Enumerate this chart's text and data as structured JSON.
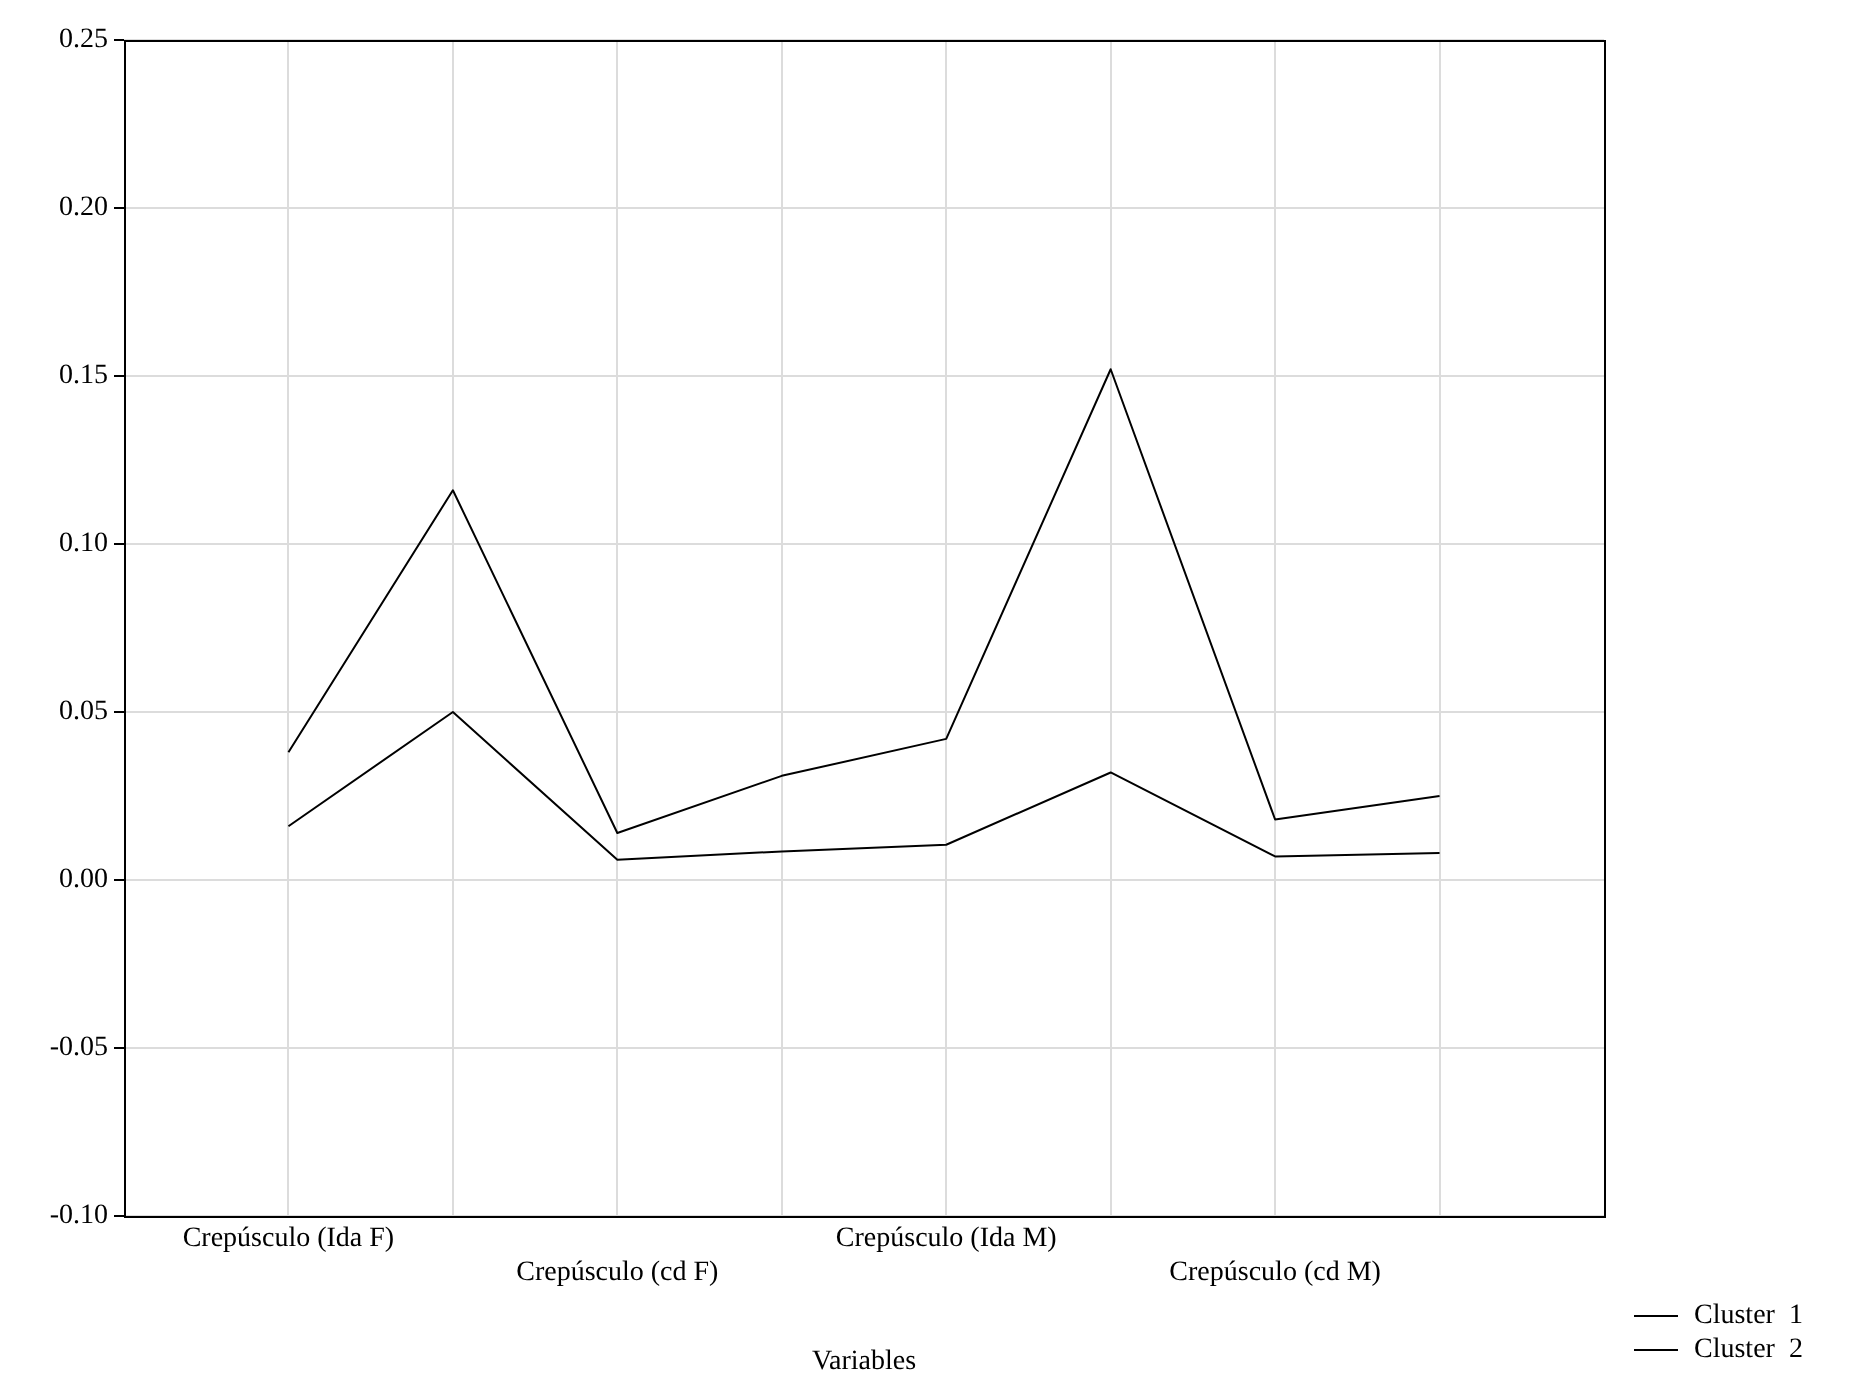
{
  "chart_data": {
    "type": "line",
    "xlabel": "Variables",
    "categories": [
      "Crepúsculo (Ida F)",
      null,
      "Crepúsculo (cd F)",
      null,
      "Crepúsculo (Ida M)",
      null,
      "Crepúsculo (cd M)",
      null
    ],
    "series": [
      {
        "name": "Cluster  1",
        "color": "#000000",
        "values": [
          0.038,
          0.116,
          0.014,
          0.031,
          0.042,
          0.152,
          0.018,
          0.025
        ]
      },
      {
        "name": "Cluster  2",
        "color": "#000000",
        "values": [
          0.016,
          0.05,
          0.006,
          0.0085,
          0.0105,
          0.032,
          0.007,
          0.008
        ]
      }
    ],
    "ylim": [
      -0.1,
      0.25
    ],
    "yticks": [
      {
        "value": -0.1,
        "label": "-0.10"
      },
      {
        "value": -0.05,
        "label": "-0.05"
      },
      {
        "value": 0,
        "label": "0.00"
      },
      {
        "value": 0.05,
        "label": "0.05"
      },
      {
        "value": 0.1,
        "label": "0.10"
      },
      {
        "value": 0.15,
        "label": "0.15"
      },
      {
        "value": 0.2,
        "label": "0.20"
      },
      {
        "value": 0.25,
        "label": "0.25"
      }
    ],
    "grid": true,
    "legend": "bottom right",
    "marker": "none",
    "line_style": "solid"
  }
}
